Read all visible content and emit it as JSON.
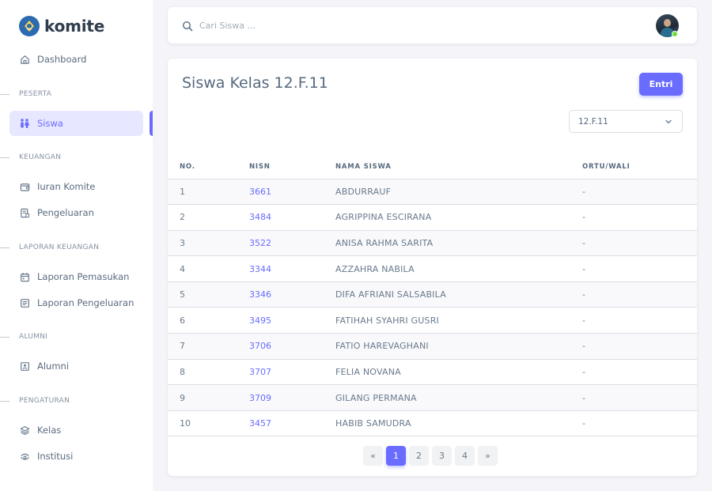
{
  "brand": {
    "name": "komite",
    "logo_icon": "tut-wuri-handayani-logo"
  },
  "sidebar": {
    "dashboard": {
      "label": "Dashboard",
      "icon": "home-icon"
    },
    "sections": {
      "peserta": "PESERTA",
      "keuangan": "KEUANGAN",
      "laporan_keuangan": "LAPORAN KEUANGAN",
      "alumni": "ALUMNI",
      "pengaturan": "PENGATURAN"
    },
    "items": {
      "siswa": "Siswa",
      "iuran_komite": "Iuran Komite",
      "pengeluaran": "Pengeluaran",
      "laporan_pemasukan": "Laporan Pemasukan",
      "laporan_pengeluaran": "Laporan Pengeluaran",
      "alumni": "Alumni",
      "kelas": "Kelas",
      "institusi": "Institusi"
    },
    "active_item": "Siswa"
  },
  "search": {
    "placeholder": "Cari Siswa ..."
  },
  "main": {
    "title": "Siswa Kelas 12.F.11",
    "entri_label": "Entri",
    "kelas_selected": "12.F.11",
    "columns": [
      "NO.",
      "NISN",
      "NAMA SISWA",
      "ORTU/WALI"
    ],
    "rows": [
      {
        "no": "1",
        "nisn": "3661",
        "nama": "ABDURRAUF",
        "ortu": "-"
      },
      {
        "no": "2",
        "nisn": "3484",
        "nama": "AGRIPPINA ESCIRANA",
        "ortu": "-"
      },
      {
        "no": "3",
        "nisn": "3522",
        "nama": "ANISA RAHMA SARITA",
        "ortu": "-"
      },
      {
        "no": "4",
        "nisn": "3344",
        "nama": "AZZAHRA NABILA",
        "ortu": "-"
      },
      {
        "no": "5",
        "nisn": "3346",
        "nama": "DIFA AFRIANI SALSABILA",
        "ortu": "-"
      },
      {
        "no": "6",
        "nisn": "3495",
        "nama": "FATIHAH SYAHRI GUSRI",
        "ortu": "-"
      },
      {
        "no": "7",
        "nisn": "3706",
        "nama": "FATIO HAREVAGHANI",
        "ortu": "-"
      },
      {
        "no": "8",
        "nisn": "3707",
        "nama": "FELIA NOVANA",
        "ortu": "-"
      },
      {
        "no": "9",
        "nisn": "3709",
        "nama": "GILANG PERMANA",
        "ortu": "-"
      },
      {
        "no": "10",
        "nisn": "3457",
        "nama": "HABIB SAMUDRA",
        "ortu": "-"
      }
    ]
  },
  "pagination": {
    "prev": "«",
    "pages": [
      "1",
      "2",
      "3",
      "4"
    ],
    "next": "»",
    "current": "1"
  },
  "colors": {
    "accent": "#696cff",
    "online": "#71dd37"
  }
}
